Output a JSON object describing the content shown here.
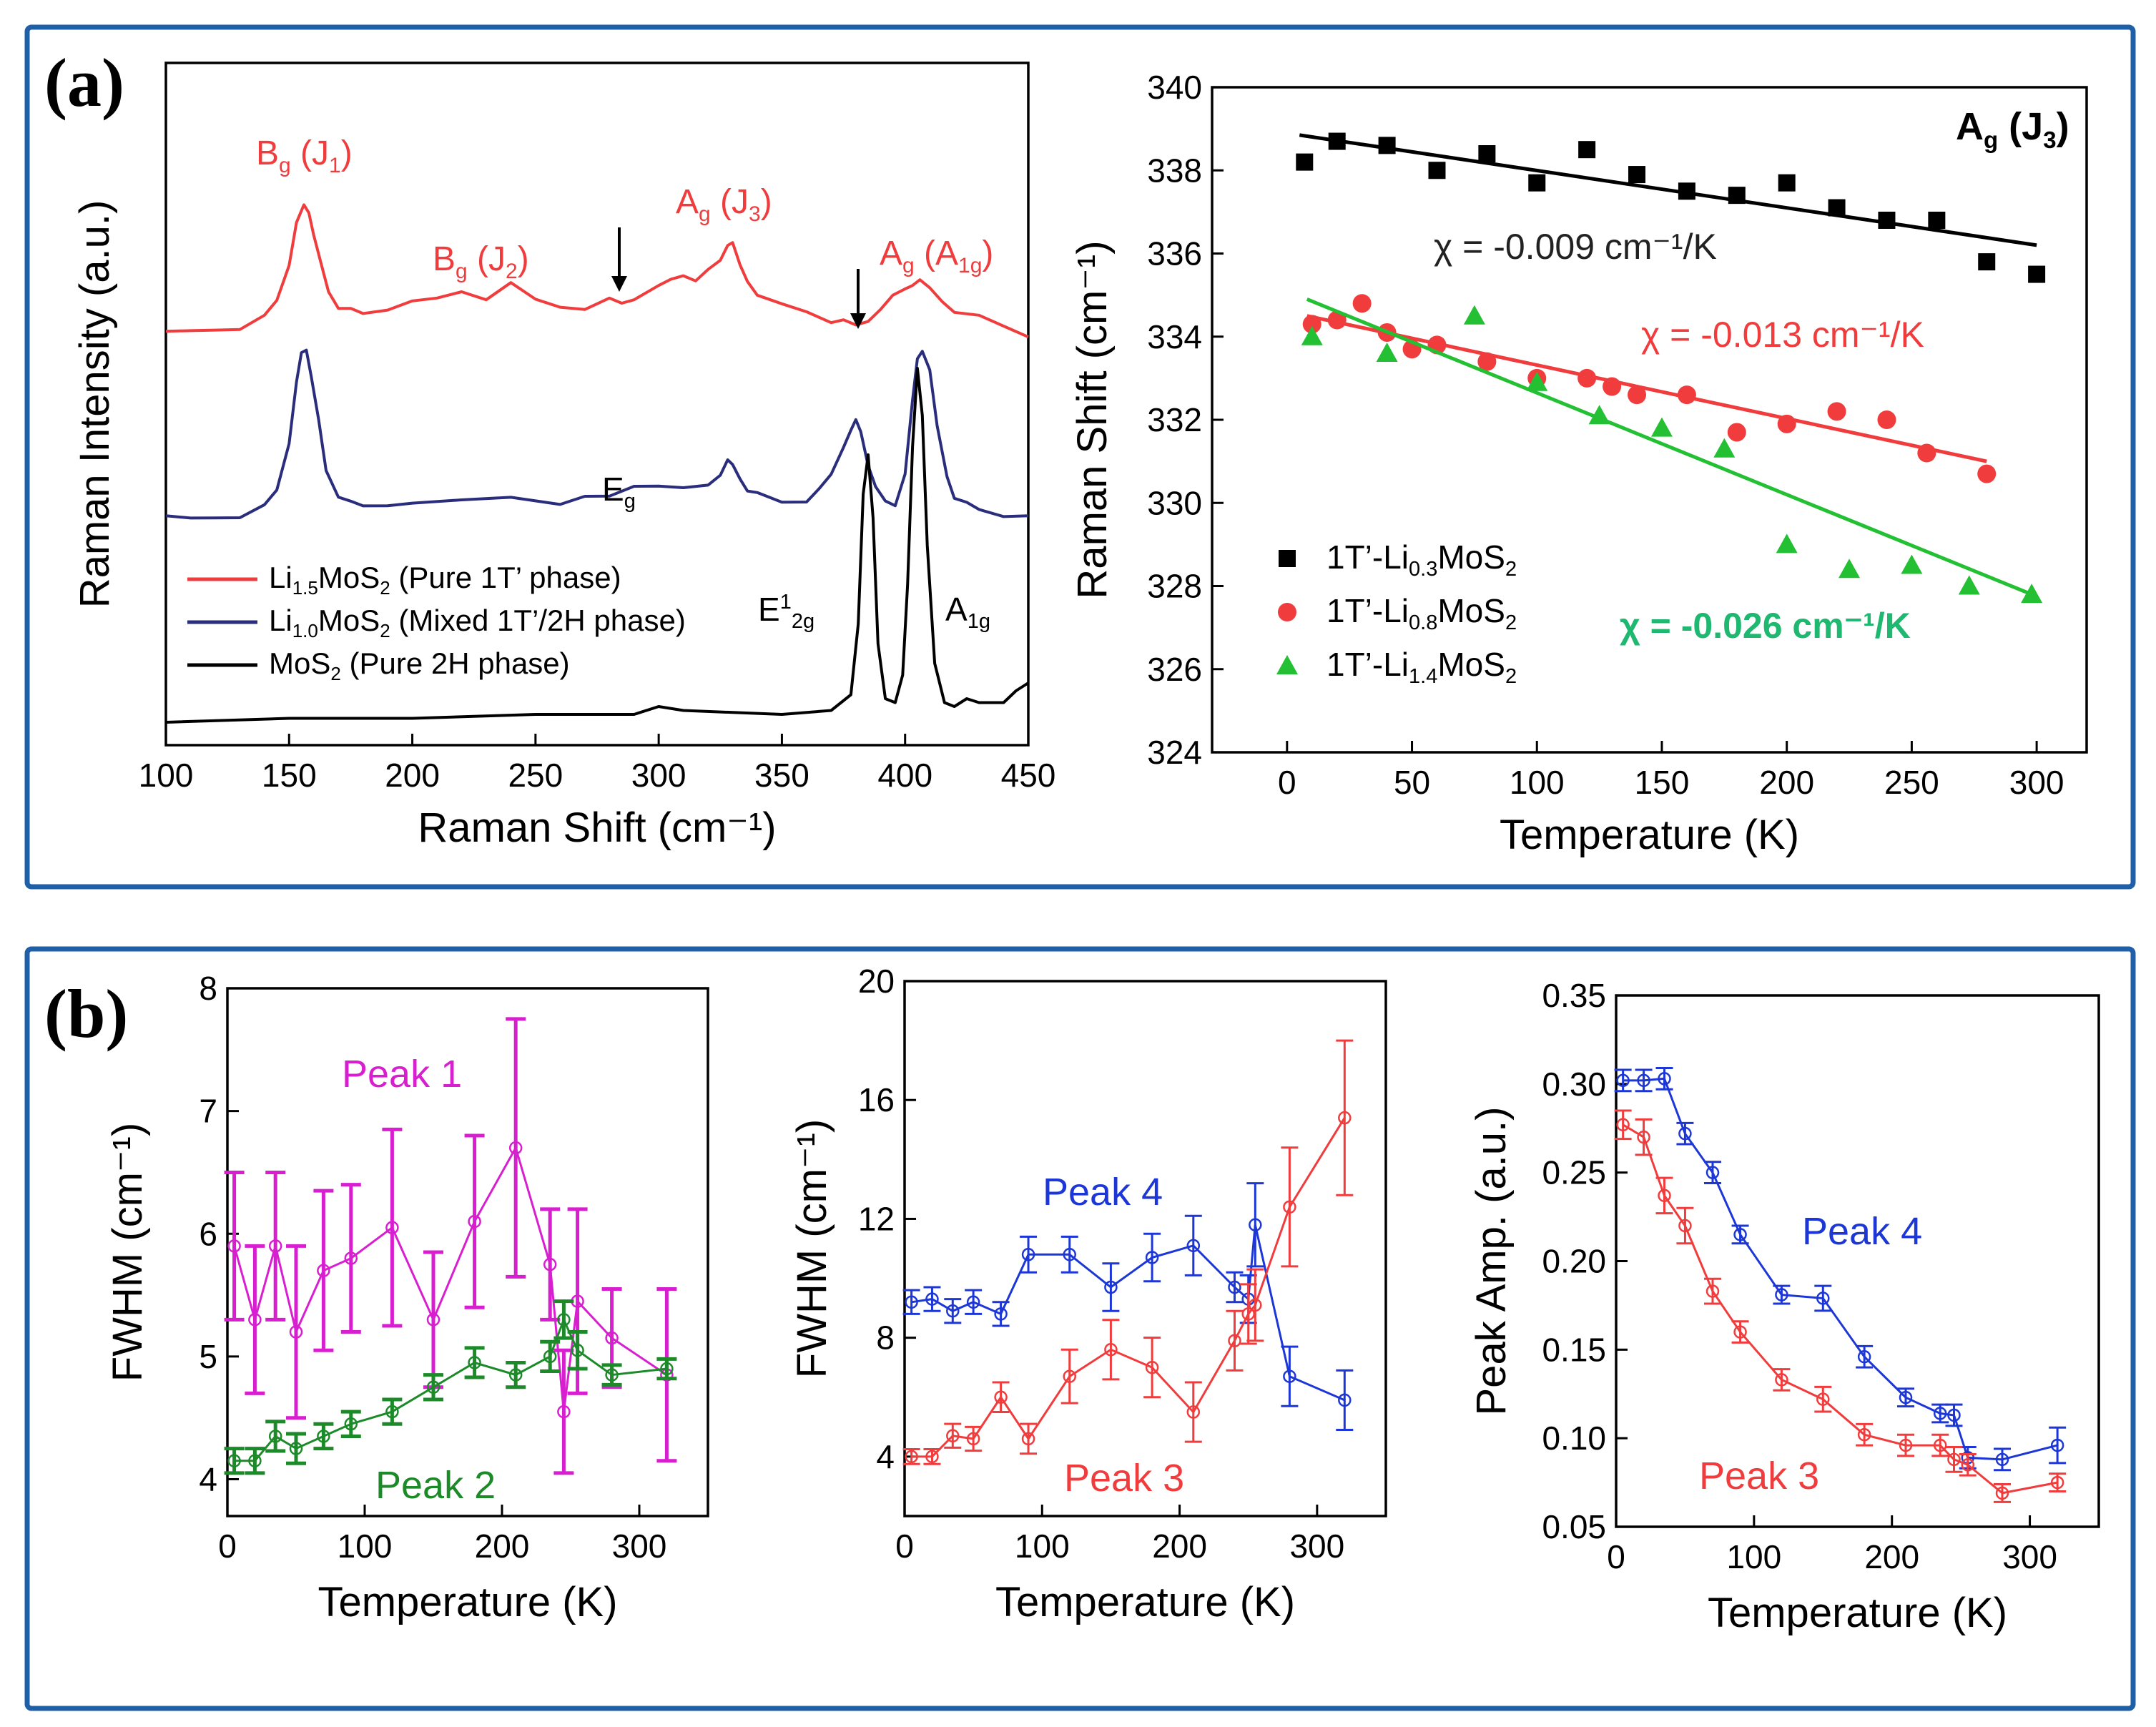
{
  "panels": {
    "a_label": "(a)",
    "b_label": "(b)"
  },
  "colors": {
    "frame": "#1f5fa8",
    "red": "#f03c3c",
    "navy": "#2a2d7c",
    "black": "#000000",
    "magenta": "#d81fd0",
    "green": "#1d8a2a",
    "blue": "#1d37d6",
    "teal": "#1fb870",
    "lime": "#22c032"
  },
  "chart_data": [
    {
      "id": "raman_spectra",
      "type": "line",
      "title": "",
      "xlabel": "Raman Shift (cm⁻¹)",
      "ylabel": "Raman Intensity (a.u.)",
      "xlim": [
        100,
        450
      ],
      "xticks": [
        100,
        150,
        200,
        250,
        300,
        350,
        400,
        450
      ],
      "series": [
        {
          "name": "Li1.5MoS2 (Pure 1T' phase)",
          "label_main": "Li",
          "label_sub": "1.5",
          "label_rest": "MoS",
          "label_sub2": "2",
          "label_tail": " (Pure 1T’ phase)",
          "color": "#f03c3c",
          "x": [
            100,
            110,
            120,
            130,
            140,
            145,
            150,
            153,
            156,
            158,
            160,
            163,
            166,
            170,
            175,
            180,
            190,
            200,
            210,
            220,
            230,
            240,
            250,
            260,
            270,
            280,
            285,
            290,
            300,
            305,
            310,
            315,
            320,
            325,
            328,
            330,
            333,
            336,
            340,
            350,
            360,
            370,
            375,
            380,
            385,
            390,
            395,
            400,
            403,
            406,
            410,
            415,
            420,
            430,
            440,
            450
          ],
          "y": [
            0.0,
            0.01,
            0.02,
            0.03,
            0.06,
            0.12,
            0.25,
            0.38,
            0.45,
            0.43,
            0.36,
            0.24,
            0.15,
            0.1,
            0.08,
            0.07,
            0.09,
            0.13,
            0.12,
            0.15,
            0.13,
            0.17,
            0.12,
            0.1,
            0.1,
            0.12,
            0.11,
            0.13,
            0.16,
            0.19,
            0.21,
            0.2,
            0.22,
            0.26,
            0.32,
            0.31,
            0.24,
            0.19,
            0.15,
            0.1,
            0.08,
            0.05,
            0.04,
            0.03,
            0.05,
            0.1,
            0.13,
            0.16,
            0.18,
            0.18,
            0.16,
            0.12,
            0.09,
            0.06,
            0.03,
            0.0
          ]
        },
        {
          "name": "Li1.0MoS2 (Mixed 1T'/2H phase)",
          "label_main": "Li",
          "label_sub": "1.0",
          "label_rest": "MoS",
          "label_sub2": "2",
          "label_tail": " (Mixed 1T’/2H phase)",
          "color": "#2a2d7c",
          "x": [
            100,
            110,
            120,
            130,
            140,
            145,
            150,
            153,
            155,
            157,
            159,
            162,
            165,
            170,
            175,
            180,
            190,
            200,
            220,
            240,
            260,
            270,
            280,
            290,
            300,
            310,
            320,
            325,
            328,
            330,
            333,
            336,
            340,
            350,
            360,
            365,
            370,
            375,
            378,
            380,
            382,
            385,
            388,
            392,
            396,
            400,
            403,
            405,
            407,
            410,
            413,
            417,
            420,
            425,
            430,
            440,
            450
          ],
          "y": [
            0.0,
            0.0,
            0.01,
            0.02,
            0.05,
            0.12,
            0.32,
            0.55,
            0.68,
            0.7,
            0.6,
            0.4,
            0.2,
            0.1,
            0.06,
            0.05,
            0.06,
            0.08,
            0.07,
            0.09,
            0.07,
            0.08,
            0.09,
            0.14,
            0.15,
            0.12,
            0.14,
            0.19,
            0.23,
            0.22,
            0.17,
            0.13,
            0.1,
            0.07,
            0.08,
            0.11,
            0.18,
            0.3,
            0.38,
            0.4,
            0.36,
            0.23,
            0.12,
            0.07,
            0.06,
            0.2,
            0.48,
            0.66,
            0.7,
            0.6,
            0.38,
            0.18,
            0.1,
            0.06,
            0.04,
            0.02,
            0.0
          ]
        },
        {
          "name": "MoS2 (Pure 2H phase)",
          "label_main": "MoS",
          "label_sub": "2",
          "label_rest": "",
          "label_sub2": "",
          "label_tail": " (Pure 2H phase)",
          "color": "#000000",
          "x": [
            100,
            150,
            200,
            250,
            290,
            300,
            310,
            350,
            370,
            378,
            381,
            383,
            385,
            387,
            389,
            392,
            396,
            399,
            401,
            403,
            405,
            407,
            409,
            412,
            416,
            420,
            425,
            430,
            440,
            445,
            450
          ],
          "y": [
            0.0,
            0.01,
            0.01,
            0.02,
            0.02,
            0.04,
            0.03,
            0.02,
            0.03,
            0.07,
            0.25,
            0.58,
            0.68,
            0.52,
            0.2,
            0.06,
            0.05,
            0.12,
            0.35,
            0.7,
            0.9,
            0.78,
            0.45,
            0.15,
            0.05,
            0.04,
            0.06,
            0.05,
            0.05,
            0.08,
            0.1
          ]
        }
      ],
      "annotations": {
        "bg_j1": {
          "main": "B",
          "sub": "g",
          "rest": " (J",
          "sub2": "1",
          "close": ")"
        },
        "bg_j2": {
          "main": "B",
          "sub": "g",
          "rest": " (J",
          "sub2": "2",
          "close": ")"
        },
        "ag_j3": {
          "main": "A",
          "sub": "g",
          "rest": " (J",
          "sub2": "3",
          "close": ")"
        },
        "ag_a1g": {
          "main": "A",
          "sub": "g",
          "rest": " (A",
          "sub2": "1g",
          "close": ")"
        },
        "eg": {
          "main": "E",
          "sub": "g"
        },
        "e12g": {
          "main": "E",
          "sup": "1",
          "sub": "2g"
        },
        "a1g": {
          "main": "A",
          "sub": "1g"
        }
      }
    },
    {
      "id": "ag_j3_shift",
      "type": "scatter",
      "title": "Ag (J3)",
      "title_parts": {
        "main": "A",
        "sub": "g",
        "rest": " (J",
        "sub2": "3",
        "close": ")"
      },
      "xlabel": "Temperature (K)",
      "ylabel": "Raman Shift (cm⁻¹)",
      "xlim": [
        -30,
        320
      ],
      "ylim": [
        324,
        340
      ],
      "xticks": [
        0,
        50,
        100,
        150,
        200,
        250,
        300
      ],
      "yticks": [
        324,
        326,
        328,
        330,
        332,
        334,
        336,
        338,
        340
      ],
      "series": [
        {
          "name": "1T'-Li0.3MoS2",
          "label_main": "1T’-Li",
          "label_sub": "0.3",
          "label_rest": "MoS",
          "label_sub2": "2",
          "marker": "square",
          "color": "#000000",
          "x": [
            7,
            20,
            40,
            60,
            80,
            100,
            120,
            140,
            160,
            180,
            200,
            220,
            240,
            260,
            280,
            300
          ],
          "y": [
            338.2,
            338.7,
            338.6,
            338.0,
            338.4,
            337.7,
            338.5,
            337.9,
            337.5,
            337.4,
            337.7,
            337.1,
            336.8,
            336.8,
            335.8,
            335.5
          ],
          "fit": [
            [
              5,
              338.85
            ],
            [
              300,
              336.2
            ]
          ],
          "chi": "χ = -0.009 cm⁻¹/K"
        },
        {
          "name": "1T'-Li0.8MoS2",
          "label_main": "1T’-Li",
          "label_sub": "0.8",
          "label_rest": "MoS",
          "label_sub2": "2",
          "marker": "circle",
          "color": "#f03c3c",
          "x": [
            10,
            20,
            30,
            40,
            50,
            60,
            80,
            100,
            120,
            130,
            140,
            160,
            180,
            200,
            220,
            240,
            256,
            280
          ],
          "y": [
            334.3,
            334.4,
            334.8,
            334.1,
            333.7,
            333.8,
            333.4,
            333.0,
            333.0,
            332.8,
            332.6,
            332.6,
            331.7,
            331.9,
            332.2,
            332.0,
            331.2,
            330.7
          ],
          "fit": [
            [
              8,
              334.5
            ],
            [
              280,
              331.0
            ]
          ],
          "chi": "χ = -0.013 cm⁻¹/K"
        },
        {
          "name": "1T'-Li1.4MoS2",
          "label_main": "1T’-Li",
          "label_sub": "1.4",
          "label_rest": "MoS",
          "label_sub2": "2",
          "marker": "triangle",
          "color": "#22c032",
          "x": [
            10,
            40,
            75,
            100,
            125,
            150,
            175,
            200,
            225,
            250,
            273,
            298
          ],
          "y": [
            334.0,
            333.6,
            334.5,
            332.9,
            332.1,
            331.8,
            331.3,
            329.0,
            328.4,
            328.5,
            328.0,
            327.8
          ],
          "fit": [
            [
              8,
              334.9
            ],
            [
              298,
              327.8
            ]
          ],
          "chi": "χ = -0.026 cm⁻¹/K"
        }
      ]
    },
    {
      "id": "fwhm_peaks_1_2",
      "type": "line",
      "xlabel": "Temperature (K)",
      "ylabel": "FWHM (cm⁻¹)",
      "xlim": [
        0,
        350
      ],
      "ylim": [
        3.7,
        8.0
      ],
      "xticks": [
        0,
        100,
        200,
        300
      ],
      "yticks": [
        4,
        5,
        6,
        7,
        8
      ],
      "series": [
        {
          "name": "Peak 1",
          "color": "#d81fd0",
          "x": [
            5,
            20,
            35,
            50,
            70,
            90,
            120,
            150,
            180,
            210,
            235,
            245,
            255,
            280,
            320
          ],
          "y": [
            5.9,
            5.3,
            5.9,
            5.2,
            5.7,
            5.8,
            6.05,
            5.3,
            6.1,
            6.7,
            5.75,
            4.55,
            5.45,
            5.15,
            4.85
          ],
          "err": [
            0.6,
            0.6,
            0.6,
            0.7,
            0.65,
            0.6,
            0.8,
            0.55,
            0.7,
            1.05,
            0.45,
            0.5,
            0.75,
            0.4,
            0.7
          ]
        },
        {
          "name": "Peak 2",
          "color": "#1d8a2a",
          "x": [
            5,
            20,
            35,
            50,
            70,
            90,
            120,
            150,
            180,
            210,
            235,
            245,
            255,
            280,
            320
          ],
          "y": [
            4.15,
            4.15,
            4.35,
            4.25,
            4.35,
            4.45,
            4.55,
            4.75,
            4.95,
            4.85,
            5.0,
            5.3,
            5.05,
            4.85,
            4.9
          ],
          "err": [
            0.1,
            0.1,
            0.12,
            0.12,
            0.1,
            0.1,
            0.1,
            0.1,
            0.12,
            0.1,
            0.12,
            0.15,
            0.15,
            0.08,
            0.08
          ]
        }
      ]
    },
    {
      "id": "fwhm_peaks_3_4",
      "type": "line",
      "xlabel": "Temperature (K)",
      "ylabel": "FWHM (cm⁻¹)",
      "xlim": [
        0,
        350
      ],
      "ylim": [
        2,
        20
      ],
      "xticks": [
        0,
        100,
        200,
        300
      ],
      "yticks": [
        4,
        8,
        12,
        16,
        20
      ],
      "series": [
        {
          "name": "Peak 4",
          "color": "#1d37d6",
          "x": [
            5,
            20,
            35,
            50,
            70,
            90,
            120,
            150,
            180,
            210,
            240,
            250,
            255,
            280,
            320
          ],
          "y": [
            9.2,
            9.3,
            8.9,
            9.2,
            8.8,
            10.8,
            10.8,
            9.7,
            10.7,
            11.1,
            9.7,
            9.3,
            11.8,
            6.7,
            5.9
          ],
          "err": [
            0.4,
            0.4,
            0.4,
            0.4,
            0.4,
            0.6,
            0.6,
            0.8,
            0.8,
            1.0,
            0.5,
            0.8,
            1.4,
            1.0,
            1.0
          ]
        },
        {
          "name": "Peak 3",
          "color": "#f03c3c",
          "x": [
            5,
            20,
            35,
            50,
            70,
            90,
            120,
            150,
            180,
            210,
            240,
            250,
            255,
            280,
            320
          ],
          "y": [
            4.0,
            4.0,
            4.7,
            4.6,
            6.0,
            4.6,
            6.7,
            7.6,
            7.0,
            5.5,
            7.9,
            8.8,
            9.1,
            12.4,
            15.4
          ],
          "err": [
            0.25,
            0.25,
            0.4,
            0.4,
            0.5,
            0.5,
            0.9,
            1.0,
            1.0,
            1.0,
            1.0,
            1.0,
            1.2,
            2.0,
            2.6
          ]
        }
      ]
    },
    {
      "id": "peak_amplitude",
      "type": "line",
      "xlabel": "Temperature (K)",
      "ylabel": "Peak Amp. (a.u.)",
      "xlim": [
        0,
        350
      ],
      "ylim": [
        0.05,
        0.35
      ],
      "xticks": [
        0,
        100,
        200,
        300
      ],
      "yticks": [
        0.05,
        0.1,
        0.15,
        0.2,
        0.25,
        0.3,
        0.35
      ],
      "series": [
        {
          "name": "Peak 4",
          "color": "#1d37d6",
          "x": [
            5,
            20,
            35,
            50,
            70,
            90,
            120,
            150,
            180,
            210,
            235,
            245,
            255,
            280,
            320
          ],
          "y": [
            0.302,
            0.302,
            0.303,
            0.272,
            0.25,
            0.215,
            0.181,
            0.179,
            0.146,
            0.123,
            0.114,
            0.113,
            0.089,
            0.088,
            0.096
          ],
          "err": [
            0.006,
            0.006,
            0.006,
            0.006,
            0.006,
            0.005,
            0.005,
            0.007,
            0.006,
            0.005,
            0.005,
            0.006,
            0.006,
            0.006,
            0.01
          ]
        },
        {
          "name": "Peak 3",
          "color": "#f03c3c",
          "x": [
            5,
            20,
            35,
            50,
            70,
            90,
            120,
            150,
            180,
            210,
            235,
            245,
            255,
            280,
            320
          ],
          "y": [
            0.277,
            0.27,
            0.237,
            0.22,
            0.183,
            0.16,
            0.133,
            0.122,
            0.102,
            0.096,
            0.096,
            0.088,
            0.085,
            0.069,
            0.075
          ],
          "err": [
            0.008,
            0.01,
            0.01,
            0.01,
            0.007,
            0.006,
            0.006,
            0.007,
            0.006,
            0.006,
            0.006,
            0.007,
            0.006,
            0.005,
            0.005
          ]
        }
      ]
    }
  ]
}
